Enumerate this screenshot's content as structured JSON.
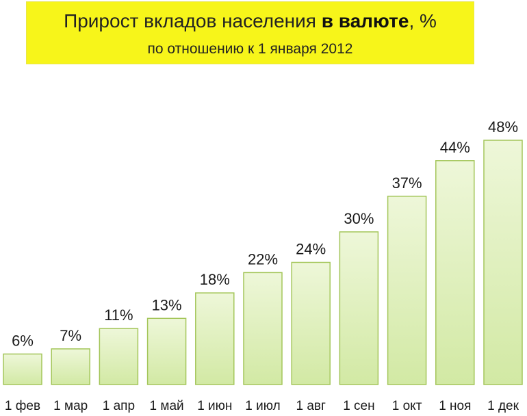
{
  "header": {
    "title_part1": "Прирост вкладов населения ",
    "title_bold": "в валюте",
    "title_part2": ", %",
    "subtitle": "по отношению к 1 января 2012"
  },
  "colors": {
    "title_background": "#f7f51a",
    "bar_fill_top": "#eef7d9",
    "bar_fill_bottom": "#d2e9a4",
    "bar_border": "#a4c65a"
  },
  "chart_data": {
    "type": "bar",
    "title": "Прирост вкладов населения в валюте, %",
    "subtitle": "по отношению к 1 января 2012",
    "categories": [
      "1 фев",
      "1 мар",
      "1 апр",
      "1 май",
      "1 июн",
      "1 июл",
      "1 авг",
      "1 сен",
      "1 окт",
      "1 ноя",
      "1 дек"
    ],
    "values": [
      6,
      7,
      11,
      13,
      18,
      22,
      24,
      30,
      37,
      44,
      48
    ],
    "value_labels": [
      "6%",
      "7%",
      "11%",
      "13%",
      "18%",
      "22%",
      "24%",
      "30%",
      "37%",
      "44%",
      "48%"
    ],
    "ylim": [
      0,
      48
    ],
    "grid": false,
    "legend": "none"
  }
}
